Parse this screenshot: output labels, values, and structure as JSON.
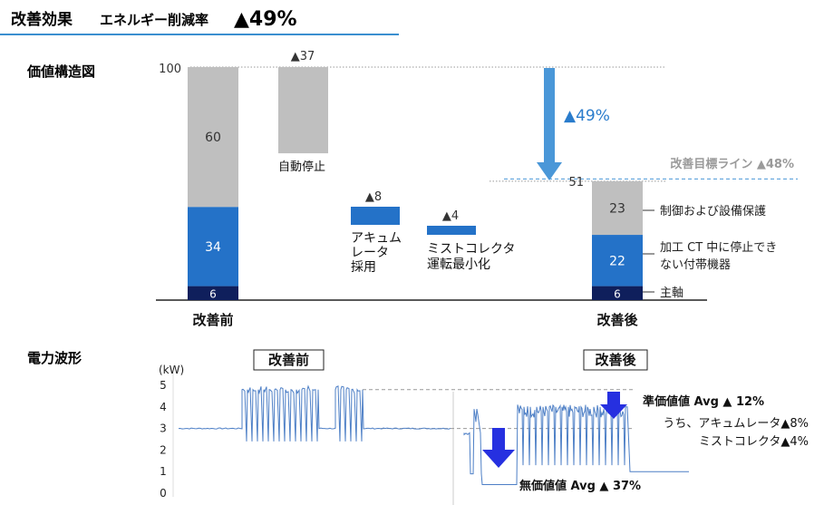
{
  "header": {
    "title": "改善効果",
    "subtitle": "エネルギー削減率",
    "headline": "▲49%"
  },
  "chart_data": [
    {
      "type": "bar",
      "title": "価値構造図",
      "ylim": [
        0,
        100
      ],
      "categories": [
        "改善前",
        "自動停止",
        "アキュムレータ採用",
        "ミストコレクタ運転最小化",
        "改善後"
      ],
      "category_labels": {
        "before": "改善前",
        "auto_stop": "自動停止",
        "accumulator": "アキュム\nレータ\n採用",
        "mist": "ミストコレクタ\n運転最小化",
        "after": "改善後"
      },
      "stacks": {
        "before": [
          {
            "name": "主軸",
            "value": 6
          },
          {
            "name": "加工 CT 中に停止できない付帯機器",
            "value": 34
          },
          {
            "name": "制御および設備保護",
            "value": 60
          }
        ],
        "after": [
          {
            "name": "主軸",
            "value": 6
          },
          {
            "name": "加工 CT 中に停止できない付帯機器",
            "value": 22
          },
          {
            "name": "制御および設備保護",
            "value": 23
          }
        ]
      },
      "reductions": [
        {
          "name": "自動停止",
          "value": 37,
          "label": "▲37"
        },
        {
          "name": "アキュムレータ採用",
          "value": 8,
          "label": "▲8"
        },
        {
          "name": "ミストコレクタ運転最小化",
          "value": 4,
          "label": "▲4"
        }
      ],
      "before_total_label": "100",
      "after_total_label": "51",
      "total_reduction_label": "▲49%",
      "target_line": {
        "value": 52,
        "label": "改善目標ライン ▲48%"
      },
      "legend": {
        "control": "制御および設備保護",
        "aux_line1": "加工 CT 中に停止でき",
        "aux_line2": "ない付帯機器",
        "spindle": "主軸"
      },
      "colors": {
        "gray": "#bfbfbf",
        "blue": "#2472c8",
        "navy": "#0f1f5c",
        "arrow": "#4a97d8",
        "target": "#4a97d8",
        "text_gray": "#9a9a9a"
      }
    },
    {
      "type": "line",
      "title": "電力波形",
      "ylabel": "(kW)",
      "yticks": [
        "5",
        "4",
        "3",
        "2",
        "1",
        "0"
      ],
      "ylim": [
        0,
        5
      ],
      "panels": {
        "before_label": "改善前",
        "after_label": "改善後"
      },
      "before": {
        "idle_level": 3.0,
        "busy_low": 2.8,
        "busy_high": 4.8
      },
      "after": {
        "non_value_level": 0.9,
        "low": 2.8,
        "high": 4.5,
        "tail_level": 1.0
      },
      "annotations": {
        "value_added": "準価値値 Avg ▲ 12%",
        "breakdown_line1": "うち、アキュムレータ▲8%",
        "breakdown_line2": "ミストコレクタ▲4%",
        "non_value": "無価値値 Avg ▲ 37%"
      },
      "colors": {
        "wave": "#4d7fc6",
        "arrow": "#2630e0"
      }
    }
  ]
}
